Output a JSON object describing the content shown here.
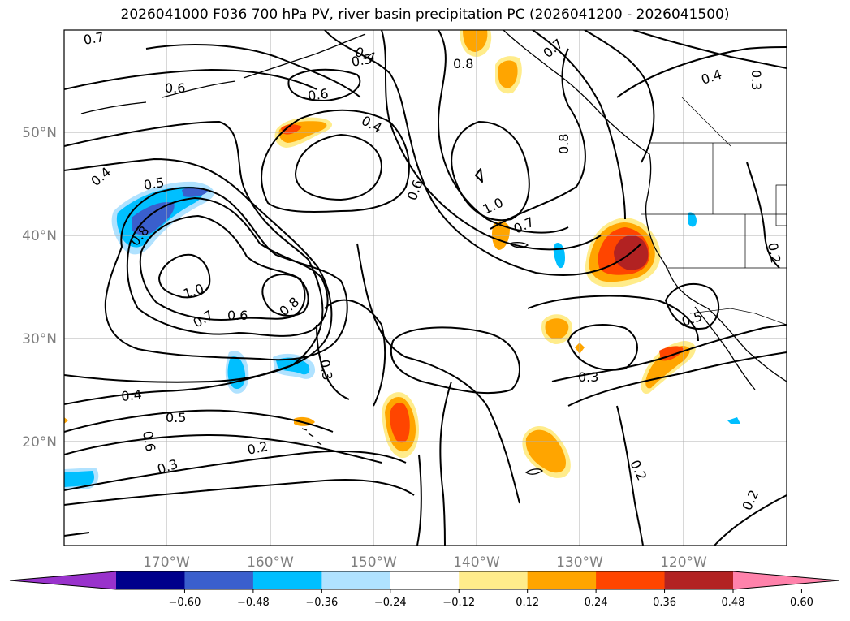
{
  "title": "2026041000 F036 700 hPa PV, river basin precipitation PC (2026041200 - 2026041500)",
  "map": {
    "lon_labels": [
      "170°W",
      "160°W",
      "150°W",
      "140°W",
      "130°W",
      "120°W"
    ],
    "lat_labels": [
      "50°N",
      "40°N",
      "30°N",
      "20°N"
    ]
  },
  "contour_labels": [
    "0.7",
    "0.4",
    "0.5",
    "0.6",
    "0.6",
    "0.4",
    "0.8",
    "0.7",
    "0.8",
    "0.4",
    "0.3",
    "0.4",
    "0.5",
    "0.6",
    "1.0",
    "0.7",
    "0.8",
    "1.0",
    "0.7",
    "0.6",
    "0.8",
    "0.2",
    "0.3",
    "0.5",
    "0.4",
    "0.5",
    "0.6",
    "0.3",
    "0.2",
    "0.3",
    "0.2",
    "0.2"
  ],
  "colorbar": {
    "ticks": [
      "−0.60",
      "−0.48",
      "−0.36",
      "−0.24",
      "−0.12",
      "0.12",
      "0.24",
      "0.36",
      "0.48",
      "0.60"
    ],
    "colors": [
      "#9932cc",
      "#00008b",
      "#3a5fcd",
      "#00bfff",
      "#b0e2ff",
      "#ffffff",
      "#ffec8b",
      "#ffa500",
      "#ff4500",
      "#b22222",
      "#ff82ab"
    ]
  }
}
